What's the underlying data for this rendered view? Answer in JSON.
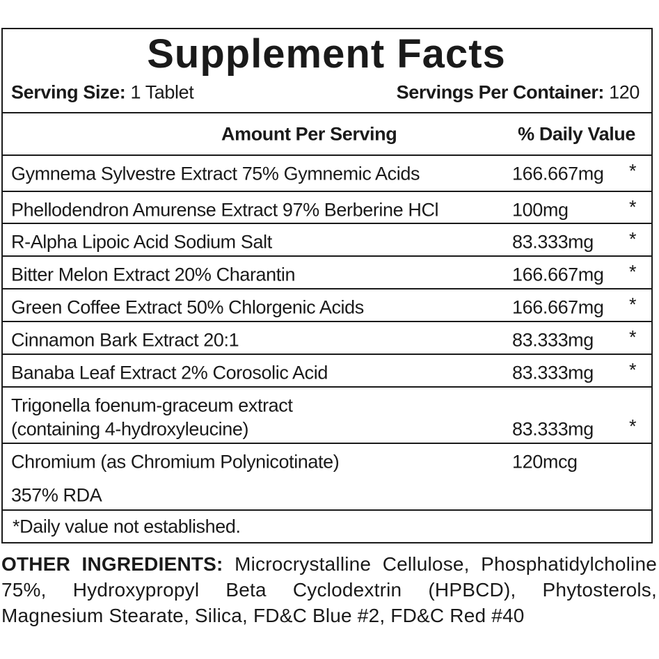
{
  "header": {
    "title": "Supplement Facts",
    "serving_size_label": "Serving Size:",
    "serving_size_value": "1 Tablet",
    "servings_label": "Servings Per Container:",
    "servings_value": "120"
  },
  "table": {
    "columns": [
      "Amount Per Serving",
      "% Daily Value"
    ],
    "rows": [
      {
        "name": [
          "Gymnema Sylvestre Extract 75% Gymnemic Acids"
        ],
        "amount": "166.667mg",
        "dv": "*"
      },
      {
        "name": [
          "Phellodendron Amurense Extract 97% Berberine HCl"
        ],
        "amount": "100mg",
        "dv": "*"
      },
      {
        "name": [
          "R-Alpha Lipoic Acid Sodium Salt"
        ],
        "amount": "83.333mg",
        "dv": "*"
      },
      {
        "name": [
          "Bitter Melon Extract 20% Charantin"
        ],
        "amount": "166.667mg",
        "dv": "*"
      },
      {
        "name": [
          "Green Coffee Extract 50% Chlorgenic Acids"
        ],
        "amount": "166.667mg",
        "dv": "*"
      },
      {
        "name": [
          "Cinnamon Bark Extract 20:1"
        ],
        "amount": "83.333mg",
        "dv": "*"
      },
      {
        "name": [
          "Banaba Leaf Extract 2% Corosolic Acid"
        ],
        "amount": "83.333mg",
        "dv": "*"
      },
      {
        "name": [
          "Trigonella foenum-graceum extract",
          "(containing 4-hydroxyleucine)"
        ],
        "amount": "83.333mg",
        "dv": "*"
      },
      {
        "name": [
          "Chromium (as Chromium Polynicotinate)",
          "357% RDA"
        ],
        "amount": "120mcg"
      }
    ],
    "footnote": "*Daily value not established."
  },
  "other_ingredients": {
    "label": "OTHER INGREDIENTS:",
    "text": "Microcrystalline Cellulose, Phosphatidylcholine 75%, Hydroxypropyl Beta Cyclodextrin (HPBCD), Phytosterols, Magnesium Stearate, Silica, FD&C Blue #2, FD&C Red #40"
  }
}
